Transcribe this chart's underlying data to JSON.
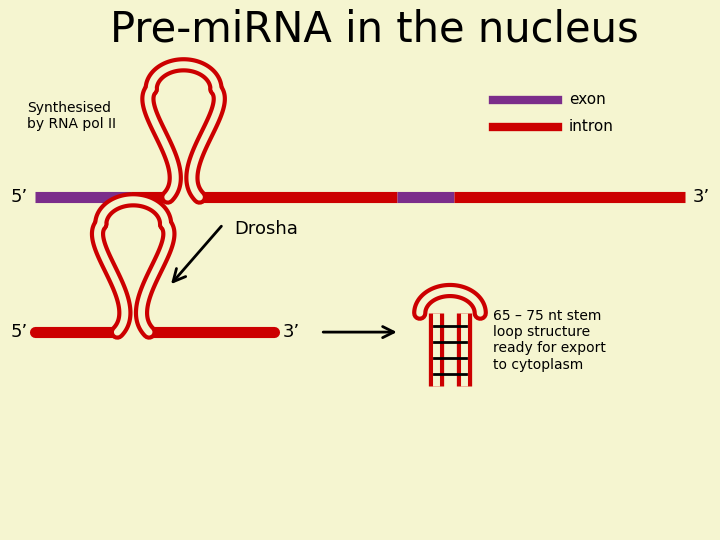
{
  "title": "Pre-miRNA in the nucleus",
  "background_color": "#f5f5d0",
  "title_fontsize": 30,
  "title_color": "#000000",
  "red_color": "#cc0000",
  "purple_color": "#7b2d8b",
  "black_color": "#000000",
  "label_synthesised": "Synthesised\nby RNA pol II",
  "label_exon": "exon",
  "label_intron": "intron",
  "label_5prime_top": "5’",
  "label_3prime_top": "3’",
  "label_5prime_bot": "5’",
  "label_3prime_bot": "3’",
  "label_drosha": "Drosha",
  "label_65_75": "65 – 75 nt stem\nloop structure\nready for export\nto cytoplasm"
}
